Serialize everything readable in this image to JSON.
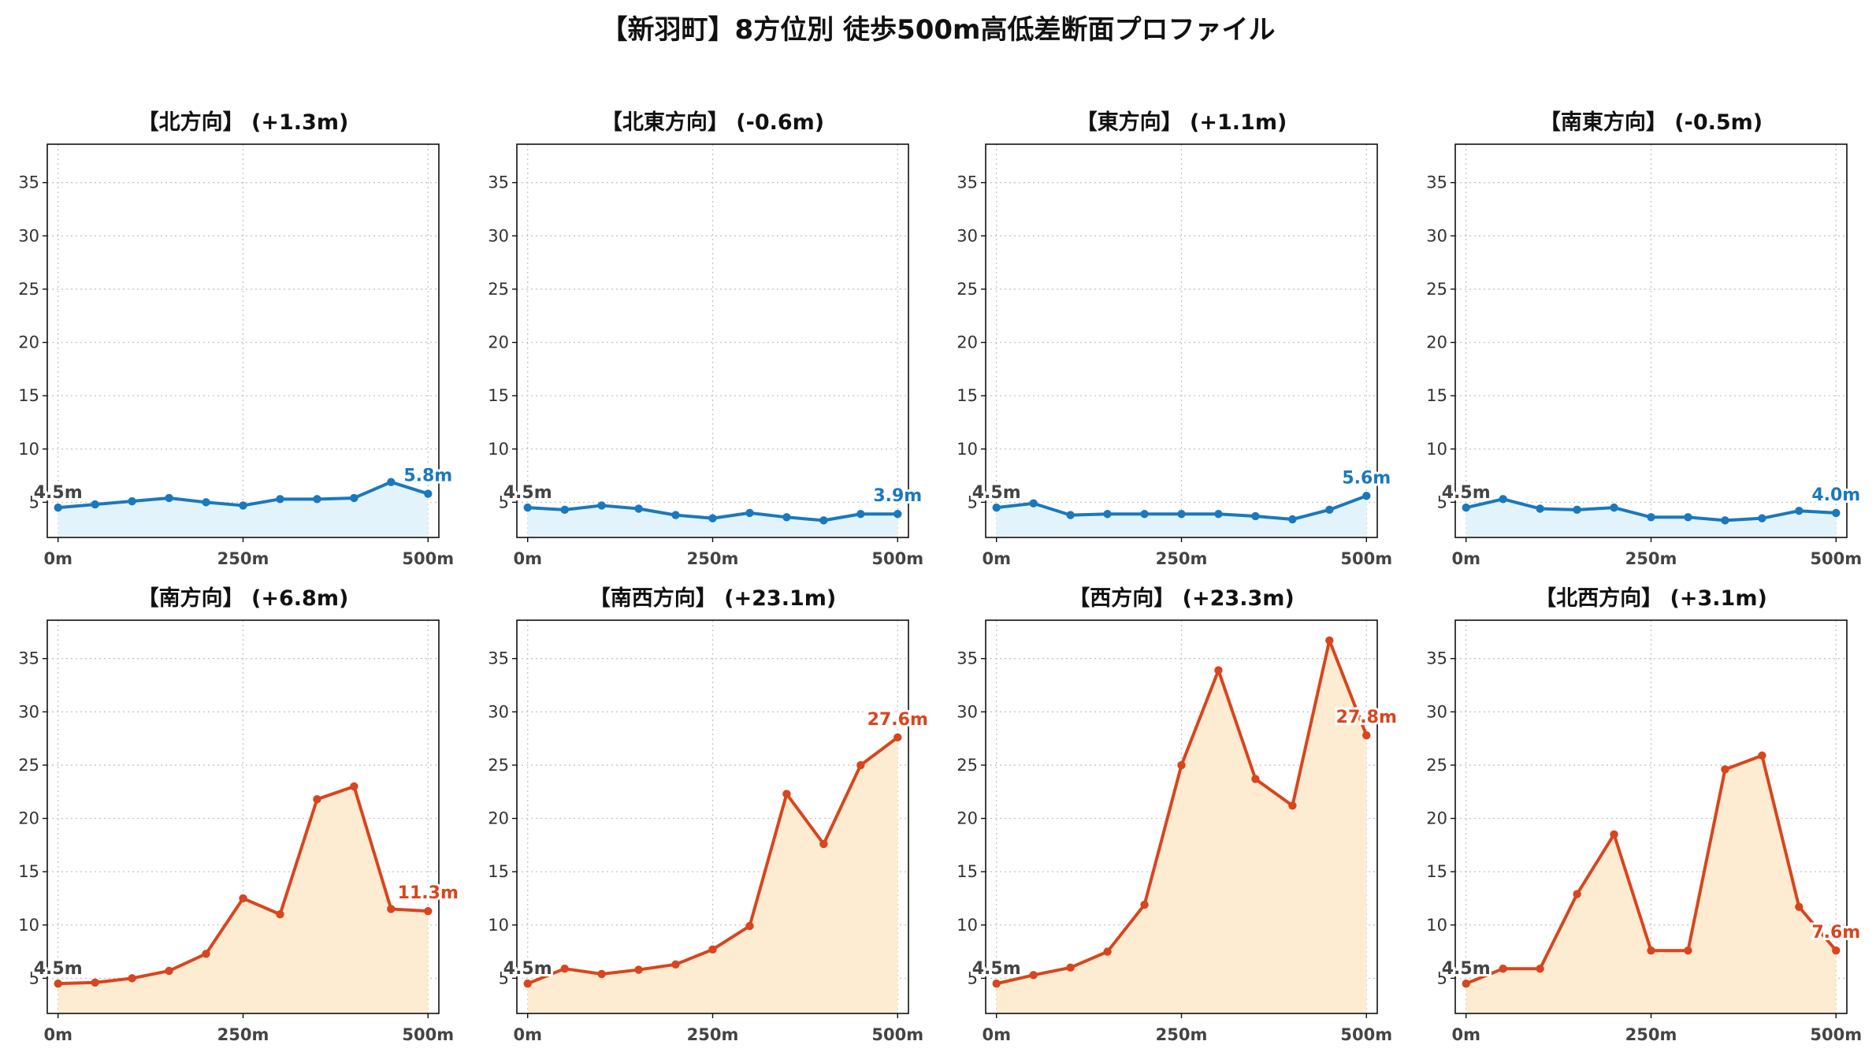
{
  "title": "【新羽町】8方位別 徒歩500m高低差断面プロファイル",
  "colors": {
    "down_line": "#1a78be",
    "down_fill": "#e3f3fb",
    "up_line": "#d9451c",
    "up_fill": "#fdebd2",
    "start_label": "#444444"
  },
  "chart_data": [
    {
      "type": "area",
      "title": "【北方向】 (+1.3m)",
      "trend": "down",
      "x": [
        0,
        50,
        100,
        150,
        200,
        250,
        300,
        350,
        400,
        450,
        500
      ],
      "values": [
        4.5,
        4.8,
        5.1,
        5.4,
        5.0,
        4.7,
        5.3,
        5.3,
        5.4,
        6.9,
        5.8
      ],
      "start_label": "4.5m",
      "end_label": "5.8m",
      "yticks": [
        5,
        10,
        15,
        20,
        25,
        30,
        35
      ],
      "ylim": [
        1.7,
        38.6
      ],
      "xticks": [
        "0m",
        "250m",
        "500m"
      ],
      "grid": true
    },
    {
      "type": "area",
      "title": "【北東方向】 (-0.6m)",
      "trend": "down",
      "x": [
        0,
        50,
        100,
        150,
        200,
        250,
        300,
        350,
        400,
        450,
        500
      ],
      "values": [
        4.5,
        4.3,
        4.7,
        4.4,
        3.8,
        3.5,
        4.0,
        3.6,
        3.3,
        3.9,
        3.9
      ],
      "start_label": "4.5m",
      "end_label": "3.9m",
      "yticks": [
        5,
        10,
        15,
        20,
        25,
        30,
        35
      ],
      "ylim": [
        1.7,
        38.6
      ],
      "xticks": [
        "0m",
        "250m",
        "500m"
      ],
      "grid": true
    },
    {
      "type": "area",
      "title": "【東方向】 (+1.1m)",
      "trend": "down",
      "x": [
        0,
        50,
        100,
        150,
        200,
        250,
        300,
        350,
        400,
        450,
        500
      ],
      "values": [
        4.5,
        4.9,
        3.8,
        3.9,
        3.9,
        3.9,
        3.9,
        3.7,
        3.4,
        4.3,
        5.6
      ],
      "start_label": "4.5m",
      "end_label": "5.6m",
      "yticks": [
        5,
        10,
        15,
        20,
        25,
        30,
        35
      ],
      "ylim": [
        1.7,
        38.6
      ],
      "xticks": [
        "0m",
        "250m",
        "500m"
      ],
      "grid": true
    },
    {
      "type": "area",
      "title": "【南東方向】 (-0.5m)",
      "trend": "down",
      "x": [
        0,
        50,
        100,
        150,
        200,
        250,
        300,
        350,
        400,
        450,
        500
      ],
      "values": [
        4.5,
        5.3,
        4.4,
        4.3,
        4.5,
        3.6,
        3.6,
        3.3,
        3.5,
        4.2,
        4.0
      ],
      "start_label": "4.5m",
      "end_label": "4.0m",
      "yticks": [
        5,
        10,
        15,
        20,
        25,
        30,
        35
      ],
      "ylim": [
        1.7,
        38.6
      ],
      "xticks": [
        "0m",
        "250m",
        "500m"
      ],
      "grid": true
    },
    {
      "type": "area",
      "title": "【南方向】 (+6.8m)",
      "trend": "up",
      "x": [
        0,
        50,
        100,
        150,
        200,
        250,
        300,
        350,
        400,
        450,
        500
      ],
      "values": [
        4.5,
        4.6,
        5.0,
        5.7,
        7.3,
        12.5,
        11.0,
        21.8,
        23.0,
        11.5,
        11.3
      ],
      "start_label": "4.5m",
      "end_label": "11.3m",
      "yticks": [
        5,
        10,
        15,
        20,
        25,
        30,
        35
      ],
      "ylim": [
        1.7,
        38.6
      ],
      "xticks": [
        "0m",
        "250m",
        "500m"
      ],
      "grid": true
    },
    {
      "type": "area",
      "title": "【南西方向】 (+23.1m)",
      "trend": "up",
      "x": [
        0,
        50,
        100,
        150,
        200,
        250,
        300,
        350,
        400,
        450,
        500
      ],
      "values": [
        4.5,
        5.9,
        5.4,
        5.8,
        6.3,
        7.7,
        9.9,
        22.3,
        17.6,
        25.0,
        27.6
      ],
      "start_label": "4.5m",
      "end_label": "27.6m",
      "yticks": [
        5,
        10,
        15,
        20,
        25,
        30,
        35
      ],
      "ylim": [
        1.7,
        38.6
      ],
      "xticks": [
        "0m",
        "250m",
        "500m"
      ],
      "grid": true
    },
    {
      "type": "area",
      "title": "【西方向】 (+23.3m)",
      "trend": "up",
      "x": [
        0,
        50,
        100,
        150,
        200,
        250,
        300,
        350,
        400,
        450,
        500
      ],
      "values": [
        4.5,
        5.3,
        6.0,
        7.5,
        11.9,
        25.0,
        33.9,
        23.7,
        21.2,
        36.7,
        27.8
      ],
      "start_label": "4.5m",
      "end_label": "27.8m",
      "yticks": [
        5,
        10,
        15,
        20,
        25,
        30,
        35
      ],
      "ylim": [
        1.7,
        38.6
      ],
      "xticks": [
        "0m",
        "250m",
        "500m"
      ],
      "grid": true
    },
    {
      "type": "area",
      "title": "【北西方向】 (+3.1m)",
      "trend": "up",
      "x": [
        0,
        50,
        100,
        150,
        200,
        250,
        300,
        350,
        400,
        450,
        500
      ],
      "values": [
        4.5,
        5.9,
        5.9,
        12.9,
        18.5,
        7.6,
        7.6,
        24.6,
        25.9,
        11.7,
        7.6
      ],
      "start_label": "4.5m",
      "end_label": "7.6m",
      "yticks": [
        5,
        10,
        15,
        20,
        25,
        30,
        35
      ],
      "ylim": [
        1.7,
        38.6
      ],
      "xticks": [
        "0m",
        "250m",
        "500m"
      ],
      "grid": true
    }
  ]
}
